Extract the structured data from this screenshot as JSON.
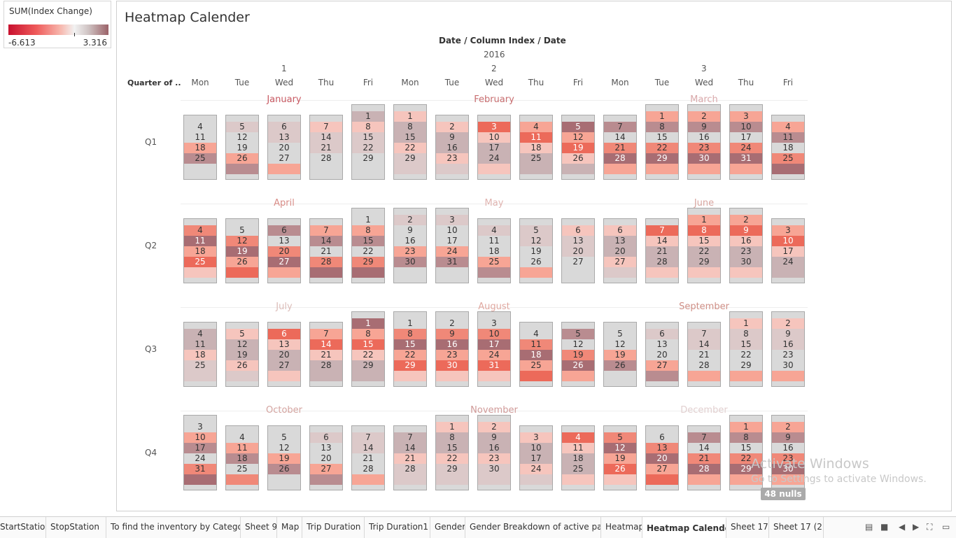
{
  "legend": {
    "title": "SUM(Index Change)",
    "min_label": "-6.613",
    "max_label": "3.316"
  },
  "sheet": {
    "title": "Heatmap Calender"
  },
  "chart_header": {
    "axis_title": "Date / Column Index / Date",
    "year": "2016",
    "column_indices": [
      "1",
      "2",
      "3"
    ],
    "row_header": "Quarter of ..",
    "weekdays": [
      "Mon",
      "Tue",
      "Wed",
      "Thu",
      "Fri",
      "Mon",
      "Tue",
      "Wed",
      "Thu",
      "Fri",
      "Mon",
      "Tue",
      "Wed",
      "Thu",
      "Fri"
    ]
  },
  "chart_data": {
    "type": "heatmap",
    "title": "Heatmap Calender",
    "measure": "SUM(Index Change)",
    "color_range": [
      -6.613,
      3.316
    ],
    "quarters": [
      {
        "label": "Q1",
        "months": [
          {
            "name": "January",
            "columns": [
              {
                "days": [
                  4,
                  11,
                  18,
                  25,
                  ""
                ]
              },
              {
                "days": [
                  5,
                  12,
                  19,
                  26,
                  ""
                ]
              },
              {
                "days": [
                  6,
                  13,
                  20,
                  27,
                  ""
                ]
              },
              {
                "days": [
                  7,
                  14,
                  21,
                  28,
                  ""
                ]
              },
              {
                "days": [
                  1,
                  8,
                  15,
                  22,
                  29,
                  ""
                ]
              }
            ]
          },
          {
            "name": "February",
            "columns": [
              {
                "days": [
                  1,
                  8,
                  15,
                  22,
                  29,
                  ""
                ]
              },
              {
                "days": [
                  2,
                  9,
                  16,
                  23,
                  ""
                ]
              },
              {
                "days": [
                  3,
                  10,
                  17,
                  24,
                  ""
                ]
              },
              {
                "days": [
                  4,
                  11,
                  18,
                  25,
                  ""
                ]
              },
              {
                "days": [
                  5,
                  12,
                  19,
                  26,
                  ""
                ]
              }
            ]
          },
          {
            "name": "March",
            "columns": [
              {
                "days": [
                  7,
                  14,
                  21,
                  28,
                  ""
                ]
              },
              {
                "days": [
                  1,
                  8,
                  15,
                  22,
                  29,
                  ""
                ]
              },
              {
                "days": [
                  2,
                  9,
                  16,
                  23,
                  30,
                  ""
                ]
              },
              {
                "days": [
                  3,
                  10,
                  17,
                  24,
                  31,
                  ""
                ]
              },
              {
                "days": [
                  4,
                  11,
                  18,
                  25,
                  ""
                ]
              }
            ]
          }
        ]
      },
      {
        "label": "Q2",
        "months": [
          {
            "name": "April",
            "columns": [
              {
                "days": [
                  4,
                  11,
                  18,
                  25,
                  ""
                ]
              },
              {
                "days": [
                  5,
                  12,
                  19,
                  26,
                  ""
                ]
              },
              {
                "days": [
                  6,
                  13,
                  20,
                  27,
                  ""
                ]
              },
              {
                "days": [
                  7,
                  14,
                  21,
                  28,
                  ""
                ]
              },
              {
                "days": [
                  1,
                  8,
                  15,
                  22,
                  29,
                  ""
                ]
              }
            ]
          },
          {
            "name": "May",
            "columns": [
              {
                "days": [
                  2,
                  9,
                  16,
                  23,
                  30,
                  ""
                ]
              },
              {
                "days": [
                  3,
                  10,
                  17,
                  24,
                  31,
                  ""
                ]
              },
              {
                "days": [
                  4,
                  11,
                  18,
                  25,
                  ""
                ]
              },
              {
                "days": [
                  5,
                  12,
                  19,
                  26,
                  ""
                ]
              },
              {
                "days": [
                  6,
                  13,
                  20,
                  27,
                  ""
                ]
              }
            ]
          },
          {
            "name": "June",
            "columns": [
              {
                "days": [
                  6,
                  13,
                  20,
                  27,
                  ""
                ]
              },
              {
                "days": [
                  7,
                  14,
                  21,
                  28,
                  ""
                ]
              },
              {
                "days": [
                  1,
                  8,
                  15,
                  22,
                  29,
                  ""
                ]
              },
              {
                "days": [
                  2,
                  9,
                  16,
                  23,
                  30,
                  ""
                ]
              },
              {
                "days": [
                  3,
                  10,
                  17,
                  24,
                  ""
                ]
              }
            ]
          }
        ]
      },
      {
        "label": "Q3",
        "months": [
          {
            "name": "July",
            "columns": [
              {
                "days": [
                  4,
                  11,
                  18,
                  25,
                  ""
                ]
              },
              {
                "days": [
                  5,
                  12,
                  19,
                  26,
                  ""
                ]
              },
              {
                "days": [
                  6,
                  13,
                  20,
                  27,
                  ""
                ]
              },
              {
                "days": [
                  7,
                  14,
                  21,
                  28,
                  ""
                ]
              },
              {
                "days": [
                  1,
                  8,
                  15,
                  22,
                  29,
                  ""
                ]
              }
            ]
          },
          {
            "name": "August",
            "columns": [
              {
                "days": [
                  1,
                  8,
                  15,
                  22,
                  29,
                  ""
                ]
              },
              {
                "days": [
                  2,
                  9,
                  16,
                  23,
                  30,
                  ""
                ]
              },
              {
                "days": [
                  3,
                  10,
                  17,
                  24,
                  31,
                  ""
                ]
              },
              {
                "days": [
                  4,
                  11,
                  18,
                  25,
                  ""
                ]
              },
              {
                "days": [
                  5,
                  12,
                  19,
                  26,
                  ""
                ]
              }
            ]
          },
          {
            "name": "September",
            "columns": [
              {
                "days": [
                  5,
                  12,
                  19,
                  26,
                  ""
                ]
              },
              {
                "days": [
                  6,
                  13,
                  20,
                  27,
                  ""
                ]
              },
              {
                "days": [
                  7,
                  14,
                  21,
                  28,
                  ""
                ]
              },
              {
                "days": [
                  1,
                  8,
                  15,
                  22,
                  29,
                  ""
                ]
              },
              {
                "days": [
                  2,
                  9,
                  16,
                  23,
                  30,
                  ""
                ]
              }
            ]
          }
        ]
      },
      {
        "label": "Q4",
        "months": [
          {
            "name": "October",
            "columns": [
              {
                "days": [
                  3,
                  10,
                  17,
                  24,
                  31,
                  ""
                ]
              },
              {
                "days": [
                  4,
                  11,
                  18,
                  25,
                  ""
                ]
              },
              {
                "days": [
                  5,
                  12,
                  19,
                  26,
                  ""
                ]
              },
              {
                "days": [
                  6,
                  13,
                  20,
                  27,
                  ""
                ]
              },
              {
                "days": [
                  7,
                  14,
                  21,
                  28,
                  ""
                ]
              }
            ]
          },
          {
            "name": "November",
            "columns": [
              {
                "days": [
                  7,
                  14,
                  21,
                  28,
                  ""
                ]
              },
              {
                "days": [
                  1,
                  8,
                  15,
                  22,
                  29,
                  ""
                ]
              },
              {
                "days": [
                  2,
                  9,
                  16,
                  23,
                  30,
                  ""
                ]
              },
              {
                "days": [
                  3,
                  10,
                  17,
                  24,
                  ""
                ]
              },
              {
                "days": [
                  4,
                  11,
                  18,
                  25,
                  ""
                ]
              }
            ]
          },
          {
            "name": "December",
            "columns": [
              {
                "days": [
                  5,
                  12,
                  19,
                  26,
                  ""
                ]
              },
              {
                "days": [
                  6,
                  13,
                  20,
                  27,
                  ""
                ]
              },
              {
                "days": [
                  7,
                  14,
                  21,
                  28,
                  ""
                ]
              },
              {
                "days": [
                  1,
                  8,
                  15,
                  22,
                  29,
                  ""
                ]
              },
              {
                "days": [
                  2,
                  9,
                  16,
                  23,
                  30,
                  ""
                ]
              }
            ]
          }
        ]
      }
    ]
  },
  "colors": {
    "grey": "#d9d9d9",
    "mauve_light": "#dcc9c9",
    "mauve": "#c9b2b4",
    "mauve_dark": "#b98c90",
    "mauve_darker": "#a86d73",
    "salmon_light": "#f6c5bd",
    "salmon": "#f7a595",
    "coral": "#f08878",
    "coral_dark": "#ec6a5a",
    "red": "#e84a40",
    "month_title": "#c47b7b"
  },
  "nulls_badge": "48 nulls",
  "watermark": {
    "line1": "Activate Windows",
    "line2": "Go to Settings to activate Windows."
  },
  "tabs": [
    "StartStation",
    "StopStation",
    "To find the inventory by Category",
    "Sheet 9",
    "Map",
    "Trip Duration",
    "Trip Duration1",
    "Gender",
    "Gender Breakdown of active par...",
    "Heatmap",
    "Heatmap Calender",
    "Sheet 17",
    "Sheet 17 (2)"
  ],
  "active_tab": "Heatmap Calender"
}
